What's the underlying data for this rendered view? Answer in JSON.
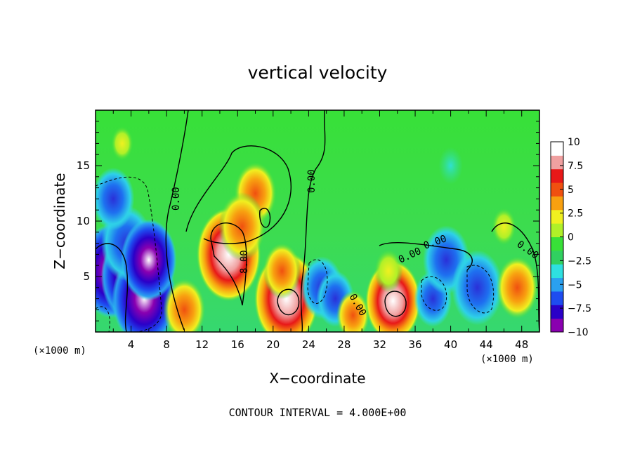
{
  "chart_data": {
    "type": "heatmap",
    "title": "vertical velocity",
    "xlabel": "X−coordinate",
    "ylabel": "Z−coordinate",
    "x_unit": "(×1000 m)",
    "z_unit": "(×1000 m)",
    "xlim": [
      0,
      50
    ],
    "ylim": [
      0,
      20
    ],
    "x_ticks": [
      "4",
      "8",
      "12",
      "16",
      "20",
      "24",
      "28",
      "32",
      "36",
      "40",
      "44",
      "48"
    ],
    "y_ticks": [
      "5",
      "10",
      "15"
    ],
    "colorbar": {
      "range": [
        -10,
        10
      ],
      "ticks": [
        "10",
        "7.5",
        "5",
        "2.5",
        "0",
        "−2.5",
        "−5",
        "−7.5",
        "−10"
      ],
      "colors": [
        "#8a00b0",
        "#2a00c8",
        "#1e4cf0",
        "#2aa0f0",
        "#2ee0e0",
        "#30d060",
        "#38e038",
        "#b0f028",
        "#f0f020",
        "#f8a010",
        "#f05010",
        "#e81818",
        "#f0a0a0",
        "#ffffff"
      ]
    },
    "contour_interval": 4.0,
    "contour_labels": [
      "0.00",
      "0.00",
      "0.00",
      "0.00",
      "0.00",
      "0.00",
      "8.00"
    ],
    "cells": [
      {
        "x": 1.8,
        "z": 5.5,
        "w": -10
      },
      {
        "x": 4.0,
        "z": 5.0,
        "w": -9
      },
      {
        "x": 5.5,
        "z": 3.0,
        "w": -10
      },
      {
        "x": 3.5,
        "z": 8.0,
        "w": -7
      },
      {
        "x": 6.0,
        "z": 6.5,
        "w": -8
      },
      {
        "x": 2.0,
        "z": 12.0,
        "w": -5
      },
      {
        "x": 10.0,
        "z": 2.0,
        "w": 5
      },
      {
        "x": 15.0,
        "z": 7.0,
        "w": 10
      },
      {
        "x": 18.0,
        "z": 12.5,
        "w": 5
      },
      {
        "x": 16.5,
        "z": 9.5,
        "w": 6
      },
      {
        "x": 21.5,
        "z": 3.0,
        "w": 10
      },
      {
        "x": 21.0,
        "z": 5.5,
        "w": 4
      },
      {
        "x": 25.5,
        "z": 4.0,
        "w": -5
      },
      {
        "x": 27.0,
        "z": 3.0,
        "w": -4
      },
      {
        "x": 29.0,
        "z": 1.5,
        "w": 3
      },
      {
        "x": 33.5,
        "z": 2.8,
        "w": 8
      },
      {
        "x": 33.0,
        "z": 5.5,
        "w": 2
      },
      {
        "x": 38.0,
        "z": 3.0,
        "w": -4
      },
      {
        "x": 39.5,
        "z": 6.5,
        "w": -6
      },
      {
        "x": 43.0,
        "z": 4.0,
        "w": -7
      },
      {
        "x": 47.5,
        "z": 4.0,
        "w": 5
      },
      {
        "x": 46.0,
        "z": 9.5,
        "w": 1
      },
      {
        "x": 3.0,
        "z": 17.0,
        "w": 0.5
      },
      {
        "x": 40.0,
        "z": 15.0,
        "w": -1
      }
    ]
  },
  "footer": {
    "contour_interval_text": "CONTOUR INTERVAL = 4.000E+00"
  }
}
